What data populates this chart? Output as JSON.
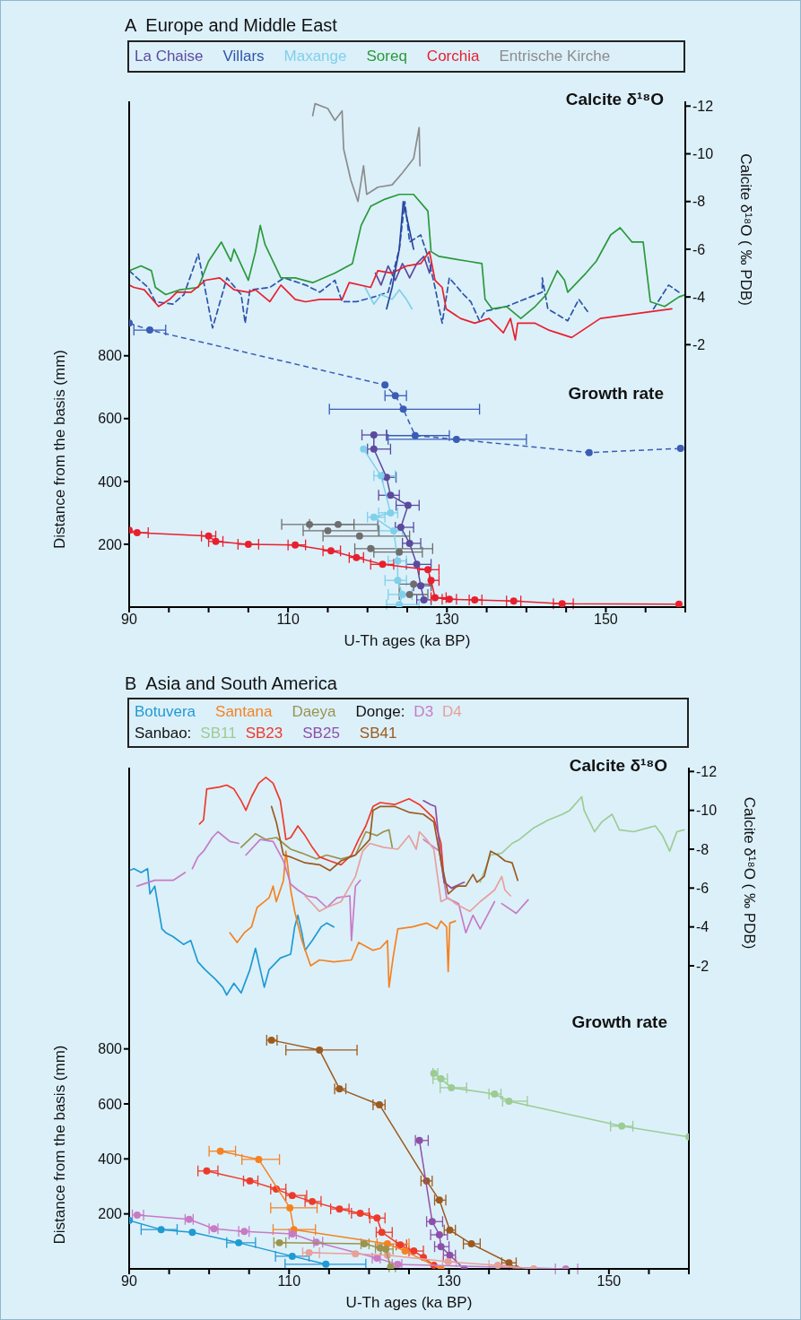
{
  "chart_data": [
    {
      "type": "line",
      "title": "A  Europe and Middle East",
      "xlabel": "U-Th ages (ka BP)",
      "ylabel": "Distance from the basis (mm)",
      "y2label": "Calcite δ¹⁸O ( ‰ PDB)",
      "legend": "top",
      "annotations": [
        "Calcite δ¹⁸O",
        "Growth rate"
      ],
      "xlim": [
        90,
        160
      ],
      "xticks": [
        90,
        {
          "value": 95,
          "label": null
        },
        {
          "value": 100,
          "label": null
        },
        {
          "value": 105,
          "label": null
        },
        110,
        {
          "value": 115,
          "label": null
        },
        {
          "value": 120,
          "label": null
        },
        {
          "value": 125,
          "label": null
        },
        130,
        {
          "value": 135,
          "label": null
        },
        {
          "value": 140,
          "label": null
        },
        {
          "value": 145,
          "label": null
        },
        150,
        {
          "value": 155,
          "label": null
        },
        {
          "value": 160,
          "label": null
        }
      ],
      "ylim": [
        0,
        1610
      ],
      "yticks": [
        200,
        400,
        600,
        800
      ],
      "y2lim": [
        9,
        -12.2
      ],
      "y2ticks": [
        -2,
        -4,
        -6,
        -8,
        -10,
        -12
      ],
      "series": [
        {
          "name": "La Chaise",
          "type": "line",
          "axis": "y2",
          "color": "#5b4a9e",
          "x": [
            121.0,
            121.7,
            122.6,
            123.5,
            124.4,
            125.3,
            126.2,
            127.1,
            127.8,
            128.0
          ],
          "values": [
            -5.0,
            -4.5,
            -5.3,
            -4.7,
            -5.4,
            -4.8,
            -5.4,
            -5.7,
            -5.0,
            -5.4
          ]
        },
        {
          "name": "Villars",
          "type": "line",
          "axis": "y2",
          "color": "#2e55a8",
          "line_style": "dashed",
          "x": [
            90.0,
            91.0,
            92.4,
            93.3,
            95.5,
            96.9,
            98.7,
            99.4,
            100.5,
            102.3,
            104.1,
            104.6,
            105.2,
            107.7,
            109.5,
            112.2,
            114.0,
            115.9,
            116.8,
            118.6,
            120.8,
            122.6,
            124.0,
            124.7,
            125.3,
            126.7,
            127.6,
            128.5,
            129.4,
            130.3,
            132.1,
            133.0,
            134.1,
            134.8,
            137.5,
            142.0,
            142.0,
            142.7,
            145.2,
            146.6,
            147.9,
            152.0,
            156.0,
            157.9,
            159.2
          ],
          "values": [
            -5.1,
            -4.8,
            -4.4,
            -3.8,
            -3.7,
            -4.1,
            -5.8,
            -4.6,
            -2.7,
            -4.8,
            -4.1,
            -2.9,
            -4.3,
            -4.4,
            -4.8,
            -4.5,
            -4.2,
            -4.7,
            -3.8,
            -3.8,
            -4.0,
            -4.2,
            -6.0,
            -8.0,
            -6.3,
            -6.6,
            -5.7,
            -4.4,
            -2.9,
            -4.8,
            -4.1,
            -3.8,
            -3.0,
            -3.4,
            -3.6,
            -4.2,
            -4.8,
            -3.5,
            -3.0,
            -3.9,
            -3.3,
            null,
            -3.5,
            -4.5,
            -4.2
          ]
        },
        {
          "name": "Maxange",
          "type": "line",
          "axis": "y2",
          "color": "#7fd0ea",
          "x": [
            119.7,
            120.8,
            121.7,
            123.1,
            124.0,
            124.9,
            125.6
          ],
          "values": [
            -4.4,
            -3.7,
            -4.1,
            -3.9,
            -4.3,
            -3.9,
            -3.5
          ]
        },
        {
          "name": "Soreq",
          "type": "line",
          "axis": "y2",
          "color": "#2a9a3a",
          "x": [
            90.0,
            91.5,
            92.8,
            93.3,
            94.6,
            96.4,
            98.7,
            100.0,
            101.6,
            102.8,
            103.2,
            105.0,
            105.9,
            106.5,
            107.1,
            109.1,
            110.9,
            113.1,
            115.9,
            118.1,
            119.2,
            120.4,
            122.2,
            124.0,
            125.8,
            127.6,
            128.0,
            129.0,
            130.8,
            132.6,
            134.4,
            134.8,
            135.7,
            137.5,
            139.3,
            141.1,
            142.5,
            143.9,
            144.8,
            145.2,
            147.5,
            148.8,
            150.6,
            151.8,
            153.3,
            154.7,
            155.6,
            157.4,
            159.2,
            160.0
          ],
          "values": [
            -5.1,
            -5.3,
            -5.1,
            -4.4,
            -4.1,
            -4.3,
            -4.4,
            -5.5,
            -6.3,
            -5.5,
            -6.0,
            -4.7,
            -5.9,
            -7.0,
            -6.2,
            -4.8,
            -4.8,
            -4.6,
            -5.0,
            -5.4,
            -7.0,
            -7.8,
            -8.1,
            -8.3,
            -8.3,
            -7.6,
            -5.9,
            -5.7,
            -5.6,
            -5.5,
            -5.4,
            -3.9,
            -3.5,
            -3.6,
            -3.1,
            -3.6,
            -4.1,
            -5.1,
            -4.7,
            -4.2,
            -5.0,
            -5.5,
            -6.6,
            -6.9,
            -6.3,
            -6.3,
            -3.8,
            -3.6,
            -4.0,
            -4.1
          ]
        },
        {
          "name": "Corchia",
          "type": "line",
          "axis": "y2",
          "color": "#e8202e",
          "x": [
            90.0,
            90.6,
            91.9,
            93.7,
            95.1,
            96.0,
            97.8,
            99.6,
            101.4,
            103.2,
            105.0,
            105.9,
            107.7,
            109.1,
            110.9,
            112.2,
            114.0,
            116.8,
            117.7,
            120.4,
            121.3,
            123.1,
            124.9,
            126.7,
            127.8,
            128.5,
            129.4,
            129.9,
            131.7,
            133.5,
            135.3,
            137.1,
            138.0,
            138.6,
            138.9,
            141.1,
            142.9,
            145.7,
            149.3,
            158.3
          ],
          "values": [
            -4.5,
            -4.4,
            -4.3,
            -3.6,
            -3.9,
            -4.2,
            -4.2,
            -4.7,
            -4.8,
            -4.3,
            -4.2,
            -4.3,
            -3.8,
            -4.5,
            -3.9,
            -3.8,
            -3.9,
            -3.9,
            -4.6,
            -4.4,
            -5.1,
            -5.0,
            -5.3,
            -5.4,
            -5.9,
            -4.7,
            -4.4,
            -3.5,
            -3.1,
            -2.9,
            -3.1,
            -2.5,
            -3.1,
            -2.2,
            -2.9,
            -2.9,
            -2.6,
            -2.3,
            -3.1,
            -3.5
          ]
        },
        {
          "name": "Entrische Kirche",
          "type": "line",
          "axis": "y2",
          "color": "#8c8c8c",
          "x": [
            113.1,
            113.4,
            115.0,
            115.9,
            116.8,
            117.0,
            117.9,
            118.8,
            119.5,
            119.9,
            121.3,
            123.1,
            124.4,
            125.8,
            126.5,
            126.6
          ],
          "values": [
            -11.6,
            -12.1,
            -11.9,
            -11.4,
            -11.8,
            -10.2,
            -8.9,
            -8.0,
            -9.5,
            -8.3,
            -8.6,
            -8.7,
            -9.2,
            -9.8,
            -11.1,
            -9.5
          ]
        },
        {
          "type": "line",
          "axis": "y2",
          "color": "#2846a0",
          "x": [
            122.4,
            123.1,
            124.0,
            124.5,
            125.1,
            125.8
          ],
          "values": [
            -3.5,
            -4.4,
            -6.0,
            -8.0,
            -7.1,
            -6.0
          ]
        },
        {
          "type": "line",
          "color": "#3a5cb4",
          "line_style": "dashed",
          "marker": "circle",
          "x": [
            90.0,
            92.6,
            122.2,
            123.5,
            124.5,
            126.0,
            131.2,
            147.9,
            159.4
          ],
          "values": [
            904,
            882,
            707,
            673,
            630,
            546,
            534,
            492,
            505
          ],
          "xerrors": [
            null,
            [
              90.6,
              94.6
            ],
            null,
            [
              122.2,
              124.9
            ],
            [
              115.2,
              134.1
            ],
            [
              122.4,
              130.3
            ],
            [
              122.6,
              140.0
            ],
            null,
            null
          ]
        },
        {
          "type": "line",
          "color": "#5b4a9e",
          "marker": "circle",
          "x": [
            120.8,
            120.8,
            122.4,
            122.9,
            125.1,
            124.2,
            125.3,
            126.2,
            126.7,
            127.1
          ],
          "values": [
            548,
            503,
            413,
            356,
            324,
            254,
            203,
            136,
            68,
            23
          ],
          "xerrors": [
            [
              119.3,
              122.4
            ],
            [
              120.0,
              122.9
            ],
            [
              121.9,
              123.6
            ],
            [
              121.4,
              124.0
            ],
            [
              123.6,
              126.5
            ],
            [
              123.5,
              125.8
            ],
            [
              124.4,
              126.7
            ],
            [
              124.9,
              128.0
            ],
            [
              125.8,
              128.0
            ],
            [
              126.2,
              128.0
            ]
          ]
        },
        {
          "type": "line",
          "color": "#7fd0ea",
          "marker": "circle",
          "x": [
            119.5,
            121.7,
            122.9,
            120.8,
            123.3,
            123.8,
            123.8,
            124.4,
            124.0
          ],
          "values": [
            503,
            418,
            300,
            286,
            243,
            147,
            85,
            40,
            8
          ],
          "xerrors": [
            null,
            [
              120.8,
              123.5
            ],
            [
              121.4,
              123.8
            ],
            [
              120.0,
              122.2
            ],
            [
              121.5,
              124.4
            ],
            [
              122.6,
              124.9
            ],
            [
              122.2,
              124.9
            ],
            [
              122.6,
              125.6
            ],
            [
              122.4,
              126.5
            ]
          ]
        },
        {
          "type": "scatter",
          "color": "#6e6e6e",
          "marker": "circle",
          "x": [
            112.7,
            116.3,
            115.0,
            119.0,
            120.4,
            124.0,
            125.8,
            125.3
          ],
          "values": [
            263,
            263,
            243,
            226,
            186,
            175,
            73,
            40
          ],
          "xerrors": [
            [
              109.2,
              118.3
            ],
            [
              112.7,
              121.3
            ],
            [
              111.9,
              121.4
            ],
            [
              114.4,
              125.3
            ],
            [
              118.4,
              128.2
            ],
            [
              120.8,
              126.9
            ],
            [
              124.0,
              128.0
            ],
            [
              124.0,
              127.6
            ]
          ]
        },
        {
          "type": "line",
          "color": "#e8202e",
          "marker": "circle",
          "x": [
            90.0,
            91.0,
            100.0,
            100.9,
            105.0,
            110.9,
            115.4,
            118.6,
            121.9,
            127.6,
            128.0,
            128.5,
            130.3,
            133.5,
            138.4,
            144.5,
            159.2
          ],
          "values": [
            245,
            237,
            226,
            209,
            200,
            198,
            179,
            158,
            136,
            119,
            85,
            30,
            25,
            23,
            19,
            11,
            9
          ],
          "xerrors": [
            null,
            [
              90.0,
              92.4
            ],
            [
              99.1,
              100.9
            ],
            [
              100.0,
              101.8
            ],
            [
              103.7,
              106.3
            ],
            [
              110.0,
              112.2
            ],
            [
              114.4,
              116.6
            ],
            [
              117.7,
              119.5
            ],
            [
              120.4,
              123.3
            ],
            [
              126.5,
              129.0
            ],
            [
              127.8,
              129.0
            ],
            [
              128.0,
              129.9
            ],
            [
              129.4,
              131.2
            ],
            [
              132.8,
              134.4
            ],
            [
              137.5,
              139.3
            ],
            [
              143.4,
              145.9
            ],
            null
          ]
        }
      ]
    },
    {
      "type": "line",
      "title": "B  Asia and South America",
      "xlabel": "U-Th ages (ka BP)",
      "ylabel": "Distance from the basis (mm)",
      "y2label": "Calcite δ¹⁸O ( ‰ PDB)",
      "legend": "top",
      "annotations": [
        "Calcite δ¹⁸O",
        "Growth rate",
        "Donge:",
        "Sanbao:"
      ],
      "xlim": [
        90,
        160
      ],
      "xticks": [
        90,
        {
          "value": 95,
          "label": null
        },
        {
          "value": 100,
          "label": null
        },
        {
          "value": 105,
          "label": null
        },
        110,
        {
          "value": 115,
          "label": null
        },
        {
          "value": 120,
          "label": null
        },
        {
          "value": 125,
          "label": null
        },
        130,
        {
          "value": 135,
          "label": null
        },
        {
          "value": 140,
          "label": null
        },
        {
          "value": 145,
          "label": null
        },
        150,
        {
          "value": 155,
          "label": null
        },
        {
          "value": 160,
          "label": null
        }
      ],
      "ylim": [
        0,
        1823
      ],
      "yticks": [
        200,
        400,
        600,
        800
      ],
      "y2lim": [
        13.6,
        -12.2
      ],
      "y2ticks": [
        -2,
        -4,
        -6,
        -8,
        -10,
        -12
      ],
      "series": [
        {
          "name": "Botuvera",
          "type": "line",
          "axis": "y2",
          "color": "#1f9ad4",
          "x": [
            90.0,
            90.6,
            91.5,
            92.3,
            92.6,
            93.2,
            94.1,
            94.6,
            95.5,
            96.8,
            97.7,
            98.6,
            99.5,
            100.8,
            101.7,
            102.2,
            103.1,
            104.0,
            105.1,
            105.8,
            106.4,
            106.9,
            107.5,
            108.9,
            110.2,
            110.7,
            111.1,
            111.6,
            112.0,
            112.9,
            114.0,
            114.7,
            115.6
          ],
          "values": [
            -6.9,
            -7.0,
            -6.8,
            -7.0,
            -5.7,
            -6.1,
            -3.9,
            -3.7,
            -3.5,
            -3.1,
            -3.3,
            -2.2,
            -1.8,
            -1.3,
            -0.9,
            -0.5,
            -1.1,
            -0.6,
            -1.8,
            -2.9,
            -1.8,
            -0.9,
            -1.8,
            -2.4,
            -2.6,
            -4.0,
            -4.6,
            -3.7,
            -2.8,
            -3.3,
            -4.0,
            -4.2,
            -4.0
          ]
        },
        {
          "name": "Santana",
          "type": "line",
          "axis": "y2",
          "color": "#f58220",
          "x": [
            102.6,
            103.5,
            104.4,
            105.3,
            106.0,
            106.6,
            107.5,
            108.0,
            108.4,
            109.3,
            109.6,
            110.2,
            110.7,
            111.6,
            112.7,
            113.8,
            115.6,
            117.8,
            118.7,
            120.5,
            121.4,
            122.3,
            122.5,
            123.0,
            123.6,
            125.4,
            127.2,
            128.5,
            129.0,
            129.7,
            129.9,
            130.1,
            130.8
          ],
          "values": [
            -3.7,
            -3.2,
            -3.7,
            -4.0,
            -5.0,
            -5.2,
            -5.5,
            -6.1,
            -5.3,
            -6.4,
            -7.9,
            -5.9,
            -4.8,
            -3.3,
            -2.0,
            -2.3,
            -2.2,
            -2.3,
            -3.2,
            -2.8,
            -2.9,
            -3.3,
            -0.9,
            -2.4,
            -3.9,
            -4.0,
            -4.2,
            -3.9,
            -4.3,
            -4.0,
            -1.7,
            -4.2,
            -4.3
          ]
        },
        {
          "name": "Daeya",
          "type": "line",
          "axis": "y2",
          "color": "#9a9450",
          "x": [
            104.0,
            105.8,
            107.1,
            108.4,
            110.2,
            111.6,
            113.4,
            114.7,
            116.5,
            118.3,
            119.6,
            121.0,
            121.8,
            122.5,
            122.9
          ],
          "values": [
            -8.1,
            -8.8,
            -8.5,
            -8.6,
            -8.0,
            -7.8,
            -7.5,
            -7.7,
            -7.5,
            -7.7,
            -8.9,
            -8.7,
            -8.9,
            -9.0,
            -8.1
          ]
        },
        {
          "name": "D3",
          "type": "line",
          "axis": "y2",
          "color": "#c77bc4",
          "x": [
            91.0,
            93.2,
            95.5,
            97.0,
            97.5,
            97.9,
            98.6,
            99.3,
            100.4,
            101.1,
            102.6,
            103.7,
            104.1,
            104.6,
            106.4,
            108.0,
            109.3,
            110.2,
            111.1,
            112.2,
            113.4,
            114.7,
            116.0,
            117.6,
            117.8,
            118.3,
            118.9,
            122.0,
            126.8,
            128.8,
            129.7,
            131.2,
            132.1,
            133.0,
            133.9,
            135.7,
            136.2,
            136.6,
            138.4,
            139.9
          ],
          "values": [
            -6.1,
            -6.4,
            -6.4,
            -6.8,
            null,
            -7.0,
            -7.6,
            -7.9,
            -8.6,
            -8.9,
            -8.4,
            -8.3,
            null,
            -7.7,
            -8.5,
            -8.4,
            -7.4,
            -6.2,
            -5.9,
            -5.6,
            -5.5,
            -5.0,
            -5.5,
            -5.6,
            -3.3,
            -6.1,
            -6.4,
            null,
            -8.5,
            -7.9,
            -5.5,
            -5.2,
            -3.7,
            -4.6,
            -3.9,
            -5.3,
            null,
            -5.2,
            -4.7,
            -5.4
          ]
        },
        {
          "name": "D4",
          "type": "line",
          "axis": "y2",
          "color": "#e8a09a",
          "x": [
            112.0,
            112.9,
            113.8,
            114.7,
            116.5,
            118.3,
            119.2,
            120.1,
            121.8,
            123.6,
            125.0,
            125.9,
            126.3,
            127.2,
            128.1,
            129.0,
            129.9,
            130.8,
            132.6,
            133.9,
            135.7,
            136.6,
            137.0,
            137.7
          ],
          "values": [
            -5.6,
            -5.2,
            -4.8,
            -5.0,
            -5.3,
            -6.6,
            -7.9,
            -8.3,
            -8.1,
            -8.0,
            -8.7,
            -8.0,
            -8.9,
            -8.5,
            -8.0,
            -5.3,
            -5.5,
            -5.2,
            -4.8,
            -5.3,
            -5.9,
            -6.6,
            -5.9,
            -5.6
          ]
        },
        {
          "name": "SB11",
          "type": "line",
          "axis": "y2",
          "color": "#9ccc94",
          "x": [
            133.9,
            135.2,
            136.6,
            137.9,
            138.8,
            140.6,
            142.4,
            144.2,
            145.1,
            146.6,
            146.9,
            148.2,
            149.1,
            150.4,
            151.3,
            153.1,
            154.9,
            155.8,
            156.7,
            157.6,
            158.5,
            159.4
          ],
          "values": [
            -6.3,
            -7.7,
            -7.8,
            -8.3,
            -8.5,
            -9.1,
            -9.5,
            -9.8,
            -10.0,
            -10.7,
            -10.0,
            -8.9,
            -9.4,
            -9.8,
            -9.0,
            -8.9,
            -9.1,
            -9.2,
            -8.7,
            -7.9,
            -8.9,
            -9.0
          ]
        },
        {
          "name": "SB23",
          "type": "line",
          "axis": "y2",
          "color": "#ee3a2a",
          "x": [
            98.8,
            99.3,
            99.7,
            101.3,
            102.2,
            103.1,
            104.0,
            104.6,
            105.3,
            106.2,
            107.1,
            108.0,
            108.9,
            109.3,
            109.6,
            110.2,
            111.1,
            112.0,
            112.9,
            113.8,
            115.1,
            116.5,
            117.8,
            118.7,
            119.6,
            120.5,
            121.4,
            123.2,
            125.0,
            126.3,
            128.1,
            129.0,
            129.4,
            130.3,
            131.2
          ],
          "values": [
            -9.3,
            -9.5,
            -11.1,
            -11.2,
            -11.3,
            -11.1,
            -10.5,
            -10.0,
            -10.7,
            -11.4,
            -11.7,
            -11.4,
            -10.5,
            -9.4,
            -8.5,
            -8.6,
            -9.2,
            -8.7,
            -8.1,
            -7.6,
            -7.4,
            -7.2,
            -7.7,
            -8.5,
            -9.2,
            -10.2,
            -10.4,
            -10.3,
            -10.6,
            -10.3,
            -9.6,
            -8.3,
            -6.3,
            -6.0,
            -6.1
          ]
        },
        {
          "name": "SB25",
          "type": "line",
          "axis": "y2",
          "color": "#8e4fa8",
          "x": [
            126.8,
            127.7,
            128.3,
            128.5,
            129.0,
            129.4,
            130.3,
            131.9
          ],
          "values": [
            -10.5,
            -10.3,
            -10.2,
            -9.4,
            -7.4,
            -6.3,
            -6.0,
            -6.3
          ]
        },
        {
          "name": "SB41",
          "type": "line",
          "axis": "y2",
          "color": "#9c5a1e",
          "x": [
            107.8,
            108.4,
            109.3,
            110.2,
            112.0,
            113.8,
            115.1,
            116.5,
            118.3,
            120.1,
            120.5,
            121.4,
            123.2,
            125.0,
            126.8,
            128.1,
            129.0,
            129.9,
            131.0,
            132.1,
            133.0,
            133.5,
            134.4,
            135.2,
            136.1,
            137.0,
            137.9,
            138.6
          ],
          "values": [
            -10.2,
            -9.4,
            -7.7,
            -7.6,
            -7.3,
            -7.2,
            -6.9,
            -7.4,
            -7.7,
            -8.5,
            -10.0,
            -10.2,
            -10.2,
            -9.9,
            -9.8,
            -9.4,
            -7.4,
            -5.7,
            -6.1,
            -6.1,
            -6.7,
            -6.3,
            -6.6,
            -7.9,
            -7.7,
            -7.4,
            -7.3,
            -6.4
          ]
        },
        {
          "type": "line",
          "color": "#9c5a1e",
          "marker": "circle",
          "x": [
            107.8,
            113.8,
            116.3,
            121.3,
            127.2,
            128.8,
            130.1,
            132.8,
            137.5,
            138.4
          ],
          "values": [
            832,
            796,
            655,
            597,
            320,
            250,
            141,
            91,
            22,
            0
          ],
          "xerrors": [
            [
              107.2,
              108.5
            ],
            [
              109.6,
              118.5
            ],
            [
              115.7,
              117.1
            ],
            [
              120.5,
              122.0
            ],
            [
              126.5,
              127.9
            ],
            [
              128.2,
              129.6
            ],
            [
              129.4,
              130.8
            ],
            [
              131.8,
              133.9
            ],
            [
              136.6,
              138.4
            ],
            null
          ]
        },
        {
          "type": "line",
          "color": "#9ccc94",
          "marker": "circle",
          "x": [
            128.1,
            129.0,
            130.3,
            135.7,
            137.5,
            151.6,
            160.0
          ],
          "values": [
            711,
            691,
            659,
            636,
            610,
            519,
            480
          ],
          "xerrors": [
            [
              128.0,
              128.6
            ],
            [
              128.0,
              129.8
            ],
            [
              128.9,
              132.2
            ],
            [
              135.0,
              136.5
            ],
            [
              136.7,
              139.8
            ],
            [
              150.2,
              153.0
            ],
            null
          ]
        },
        {
          "type": "line",
          "color": "#8e4fa8",
          "marker": "circle",
          "x": [
            126.3,
            127.9,
            128.8,
            129.0,
            130.1,
            131.9
          ],
          "values": [
            467,
            172,
            124,
            81,
            50,
            0
          ],
          "xerrors": [
            [
              125.8,
              127.4
            ],
            [
              127.2,
              129.2
            ],
            [
              127.7,
              129.8
            ],
            [
              128.2,
              130.0
            ],
            [
              129.3,
              130.8
            ],
            null
          ]
        },
        {
          "type": "line",
          "color": "#ee3a2a",
          "marker": "circle",
          "x": [
            99.7,
            105.1,
            108.4,
            110.4,
            112.9,
            116.3,
            118.9,
            121.0,
            121.6,
            123.9,
            125.6,
            126.8,
            128.1
          ],
          "values": [
            356,
            320,
            290,
            267,
            245,
            218,
            202,
            185,
            133,
            87,
            65,
            42,
            13
          ],
          "xerrors": [
            [
              98.6,
              101.1
            ],
            [
              104.3,
              106.1
            ],
            [
              107.7,
              109.6
            ],
            [
              109.6,
              112.2
            ],
            [
              112.0,
              114.0
            ],
            [
              115.2,
              117.5
            ],
            [
              117.8,
              120.0
            ],
            [
              120.1,
              122.0
            ],
            [
              120.9,
              122.9
            ],
            [
              123.4,
              124.7
            ],
            [
              125.0,
              126.8
            ],
            null,
            null
          ]
        },
        {
          "type": "line",
          "color": "#f58220",
          "marker": "circle",
          "x": [
            101.4,
            106.2,
            110.1,
            110.6,
            122.3,
            124.5,
            129.0
          ],
          "values": [
            428,
            398,
            222,
            143,
            91,
            65,
            0
          ],
          "xerrors": [
            [
              100.0,
              103.3
            ],
            [
              104.1,
              108.8
            ],
            [
              107.7,
              113.5
            ],
            [
              108.0,
              113.3
            ],
            [
              121.0,
              125.0
            ],
            null,
            null
          ]
        },
        {
          "type": "line",
          "color": "#1f9ad4",
          "marker": "circle",
          "x": [
            90.0,
            94.0,
            97.9,
            103.7,
            110.4,
            114.6
          ],
          "values": [
            176,
            143,
            133,
            95,
            46,
            17
          ],
          "xerrors": [
            null,
            [
              91.5,
              96.0
            ],
            null,
            [
              102.2,
              105.8
            ],
            [
              108.3,
              112.5
            ],
            [
              109.5,
              119.6
            ]
          ]
        },
        {
          "type": "line",
          "color": "#c77bc4",
          "marker": "circle",
          "x": [
            91.0,
            97.5,
            100.6,
            104.4,
            110.4,
            113.4,
            121.0,
            123.6,
            144.6
          ],
          "values": [
            196,
            180,
            146,
            136,
            127,
            97,
            39,
            16,
            0
          ],
          "xerrors": [
            [
              90.4,
              91.8
            ],
            [
              97.0,
              98.0
            ],
            [
              100.0,
              101.1
            ],
            [
              103.7,
              105.0
            ],
            [
              110.0,
              110.9
            ],
            [
              113.1,
              114.2
            ],
            [
              120.4,
              121.4
            ],
            [
              122.9,
              124.1
            ],
            [
              143.3,
              146.1
            ]
          ]
        },
        {
          "type": "line",
          "color": "#e8a09a",
          "marker": "circle",
          "x": [
            112.5,
            118.3,
            122.3,
            129.9,
            136.1,
            140.6
          ],
          "values": [
            59,
            55,
            50,
            26,
            13,
            0
          ],
          "xerrors": [
            [
              111.7,
              113.8
            ],
            null,
            null,
            [
              129.2,
              130.9
            ],
            [
              135.0,
              137.5
            ],
            null
          ]
        },
        {
          "type": "line",
          "color": "#9a9450",
          "marker": "circle",
          "x": [
            108.8,
            119.4,
            121.4,
            122.1,
            122.7
          ],
          "values": [
            95,
            91,
            76,
            72,
            7
          ],
          "xerrors": [
            [
              108.1,
              109.6
            ],
            [
              119.0,
              120.0
            ],
            [
              120.8,
              122.2
            ],
            [
              121.5,
              123.0
            ],
            [
              122.5,
              123.3
            ]
          ]
        }
      ]
    }
  ]
}
